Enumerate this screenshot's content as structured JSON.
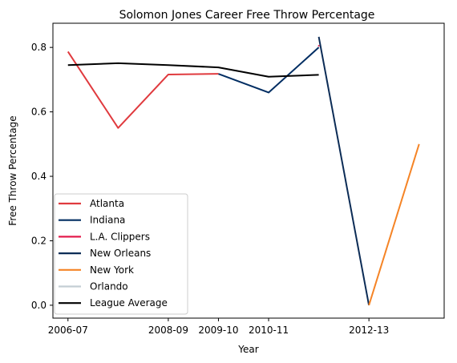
{
  "chart_data": {
    "type": "line",
    "title": "Solomon Jones  Career Free Throw Percentage",
    "xlabel": "Year",
    "ylabel": "Free Throw Percentage",
    "x_ticks": [
      "2006-07",
      "2008-09",
      "2009-10",
      "2010-11",
      "2012-13"
    ],
    "ylim": [
      -0.04,
      0.875
    ],
    "y_ticks": [
      0.0,
      0.2,
      0.4,
      0.6,
      0.8
    ],
    "y_tick_labels": [
      "0.0",
      "0.2",
      "0.4",
      "0.6",
      "0.8"
    ],
    "grid": false,
    "legend_position": "lower-left",
    "series": [
      {
        "name": "Atlanta",
        "color": "#e03a3e",
        "points": [
          [
            "2006-07",
            0.787
          ],
          [
            "2007-08",
            0.55
          ],
          [
            "2008-09",
            0.716
          ],
          [
            "2009-10",
            0.718
          ]
        ]
      },
      {
        "name": "Indiana",
        "color": "#002d62",
        "points": [
          [
            "2009-10",
            0.718
          ],
          [
            "2010-11",
            0.66
          ],
          [
            "2011-12",
            0.8
          ]
        ]
      },
      {
        "name": "L.A. Clippers",
        "color": "#e31c4d",
        "points": [
          [
            "2011-12",
            0.805
          ]
        ]
      },
      {
        "name": "New Orleans",
        "color": "#0c2c56",
        "points": [
          [
            "2011-12",
            0.833
          ],
          [
            "2012-13",
            0.0
          ]
        ]
      },
      {
        "name": "New York",
        "color": "#f58426",
        "points": [
          [
            "2012-13",
            0.0
          ],
          [
            "2013-14",
            0.5
          ]
        ]
      },
      {
        "name": "Orlando",
        "color": "#c4ced4",
        "points": []
      },
      {
        "name": "League Average",
        "color": "#000000",
        "points": [
          [
            "2006-07",
            0.745
          ],
          [
            "2007-08",
            0.751
          ],
          [
            "2008-09",
            0.745
          ],
          [
            "2009-10",
            0.738
          ],
          [
            "2010-11",
            0.709
          ],
          [
            "2011-12",
            0.715
          ]
        ]
      }
    ]
  }
}
